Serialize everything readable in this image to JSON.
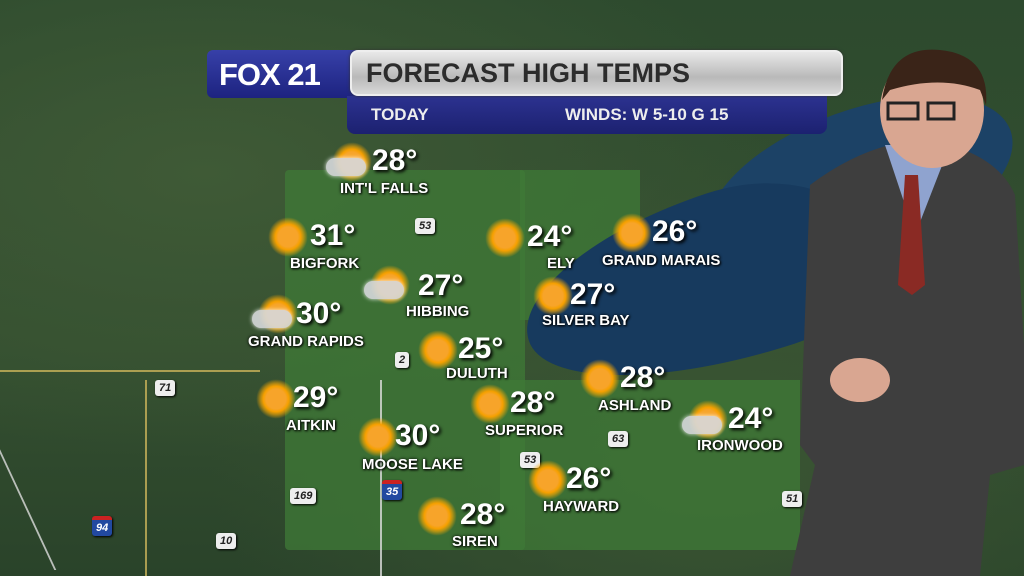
{
  "header": {
    "logo": "FOX 21",
    "title": "FORECAST HIGH TEMPS",
    "period": "TODAY",
    "winds": "WINDS: W 5-10 G 15"
  },
  "cities": [
    {
      "name": "INT'L FALLS",
      "temp": "28°",
      "icon": "partly-cloudy-icon"
    },
    {
      "name": "BIGFORK",
      "temp": "31°",
      "icon": "sun-icon"
    },
    {
      "name": "HIBBING",
      "temp": "27°",
      "icon": "partly-cloudy-icon"
    },
    {
      "name": "GRAND RAPIDS",
      "temp": "30°",
      "icon": "partly-cloudy-icon"
    },
    {
      "name": "ELY",
      "temp": "24°",
      "icon": "sun-icon"
    },
    {
      "name": "GRAND MARAIS",
      "temp": "26°",
      "icon": "sun-icon"
    },
    {
      "name": "SILVER BAY",
      "temp": "27°",
      "icon": "sun-icon"
    },
    {
      "name": "DULUTH",
      "temp": "25°",
      "icon": "sun-icon"
    },
    {
      "name": "AITKIN",
      "temp": "29°",
      "icon": "sun-icon"
    },
    {
      "name": "SUPERIOR",
      "temp": "28°",
      "icon": "sun-icon"
    },
    {
      "name": "ASHLAND",
      "temp": "28°",
      "icon": "sun-icon"
    },
    {
      "name": "IRONWOOD",
      "temp": "24°",
      "icon": "partly-cloudy-icon"
    },
    {
      "name": "MOOSE LAKE",
      "temp": "30°",
      "icon": "sun-icon"
    },
    {
      "name": "HAYWARD",
      "temp": "26°",
      "icon": "sun-icon"
    },
    {
      "name": "SIREN",
      "temp": "28°",
      "icon": "sun-icon"
    }
  ],
  "highways": [
    "53",
    "2",
    "71",
    "169",
    "35",
    "94",
    "10",
    "63",
    "53",
    "51"
  ],
  "colors": {
    "banner_blue": "#1d2380",
    "title_gray": "#c8c8c8",
    "sun": "#f6a000",
    "lake": "#173a5e"
  }
}
